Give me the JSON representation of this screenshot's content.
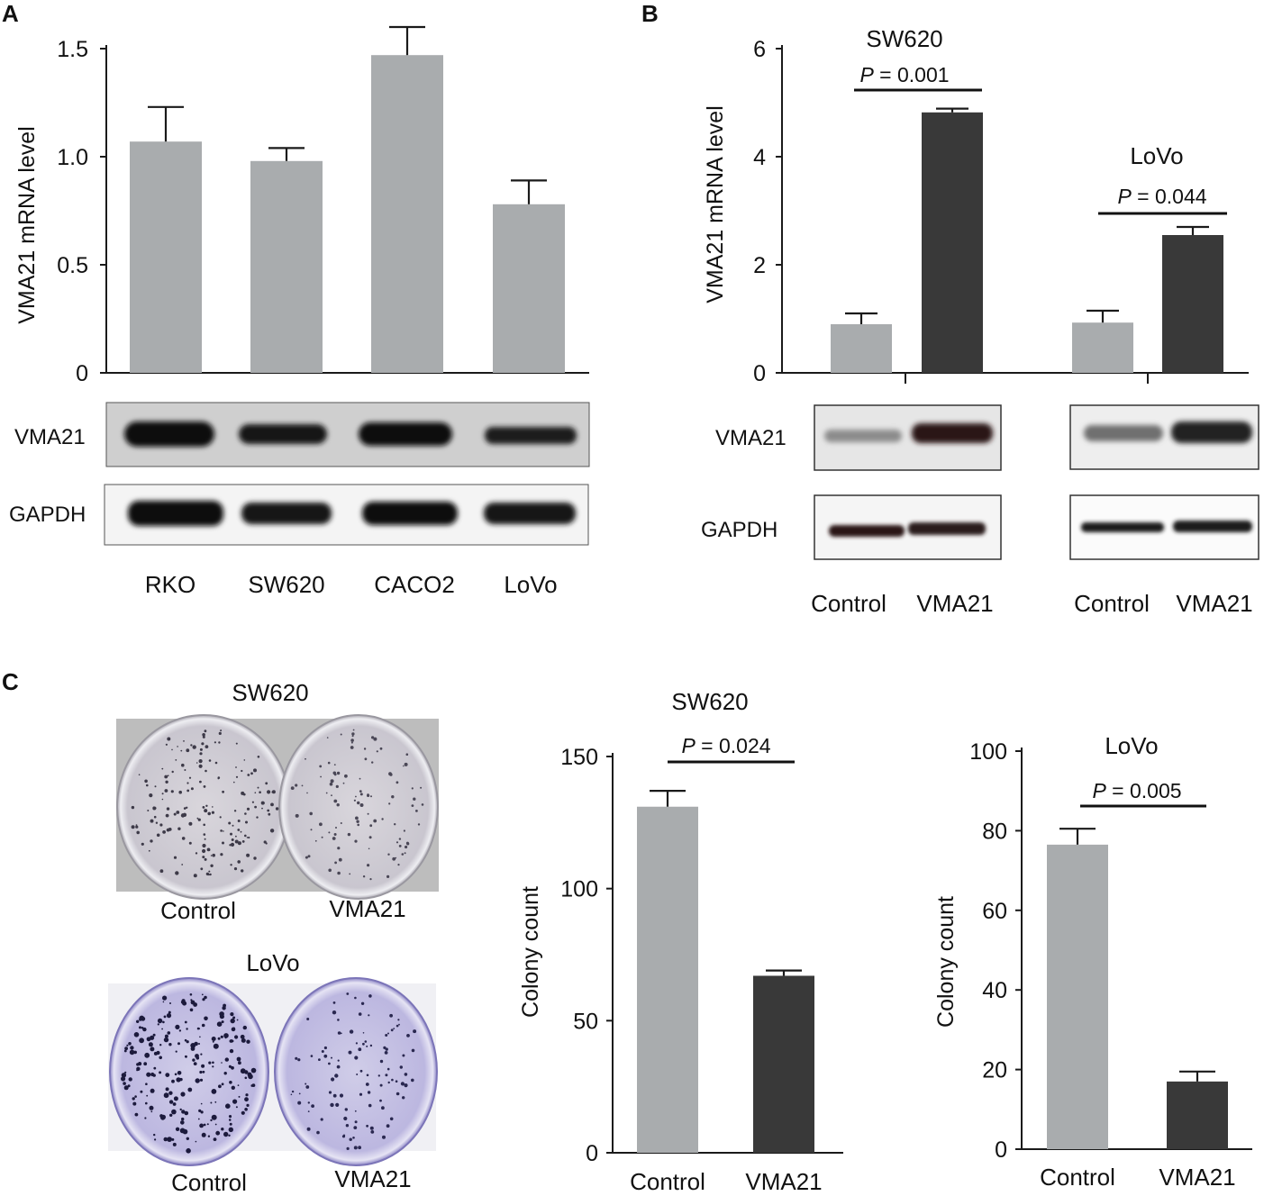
{
  "colors": {
    "control": "#a9acae",
    "treated": "#393939",
    "axis": "#1a1a1a"
  },
  "panels": {
    "A": {
      "letter": "A"
    },
    "B": {
      "letter": "B"
    },
    "C": {
      "letter": "C"
    }
  },
  "chart_data": [
    {
      "id": "A",
      "type": "bar",
      "title": "",
      "ylabel": "VMA21 mRNA level",
      "xlabel": "",
      "categories": [
        "RKO",
        "SW620",
        "CACO2",
        "LoVo"
      ],
      "values": [
        1.07,
        0.98,
        1.47,
        0.78
      ],
      "errors": [
        0.16,
        0.06,
        0.13,
        0.11
      ],
      "ylim": [
        0,
        1.5
      ],
      "yticks": [
        "0",
        "0.5",
        "1.0",
        "1.5"
      ],
      "grid": false
    },
    {
      "id": "B",
      "type": "bar",
      "ylabel": "VMA21  mRNA level",
      "categories": [
        "Control",
        "VMA21",
        "Control",
        "VMA21"
      ],
      "groups": [
        {
          "title": "SW620",
          "pvalue_label": "P",
          "pvalue_text": " = 0.001",
          "values": [
            0.9,
            4.82
          ],
          "errors": [
            0.2,
            0.07
          ]
        },
        {
          "title": "LoVo",
          "pvalue_label": "P",
          "pvalue_text": " = 0.044",
          "values": [
            0.93,
            2.55
          ],
          "errors": [
            0.22,
            0.15
          ]
        }
      ],
      "ylim": [
        0,
        6
      ],
      "yticks": [
        "0",
        "2",
        "4",
        "6"
      ],
      "grid": false
    },
    {
      "id": "C-SW620",
      "type": "bar",
      "title": "SW620",
      "ylabel": "Colony count",
      "categories": [
        "Control",
        "VMA21"
      ],
      "values": [
        131,
        67
      ],
      "errors": [
        6,
        2
      ],
      "pvalue_label": "P",
      "pvalue_text": " = 0.024",
      "ylim": [
        0,
        150
      ],
      "yticks": [
        "0",
        "50",
        "100",
        "150"
      ],
      "grid": false
    },
    {
      "id": "C-LoVo",
      "type": "bar",
      "title": "LoVo",
      "ylabel": "Colony count",
      "categories": [
        "Control",
        "VMA21"
      ],
      "values": [
        76.5,
        17
      ],
      "errors": [
        4,
        2.5
      ],
      "pvalue_label": "P",
      "pvalue_text": " = 0.005",
      "ylim": [
        0,
        100
      ],
      "yticks": [
        "0",
        "20",
        "40",
        "60",
        "80",
        "100"
      ],
      "grid": false
    }
  ],
  "blots": {
    "A": {
      "rows": [
        "VMA21",
        "GAPDH"
      ],
      "lanes": [
        "RKO",
        "SW620",
        "CACO2",
        "LoVo"
      ]
    },
    "B": {
      "rows": [
        "VMA21",
        "GAPDH"
      ]
    }
  },
  "plates": {
    "sw620": {
      "title": "SW620",
      "left": "Control",
      "right": "VMA21"
    },
    "lovo": {
      "title": "LoVo",
      "left": "Control",
      "right": "VMA21"
    }
  }
}
